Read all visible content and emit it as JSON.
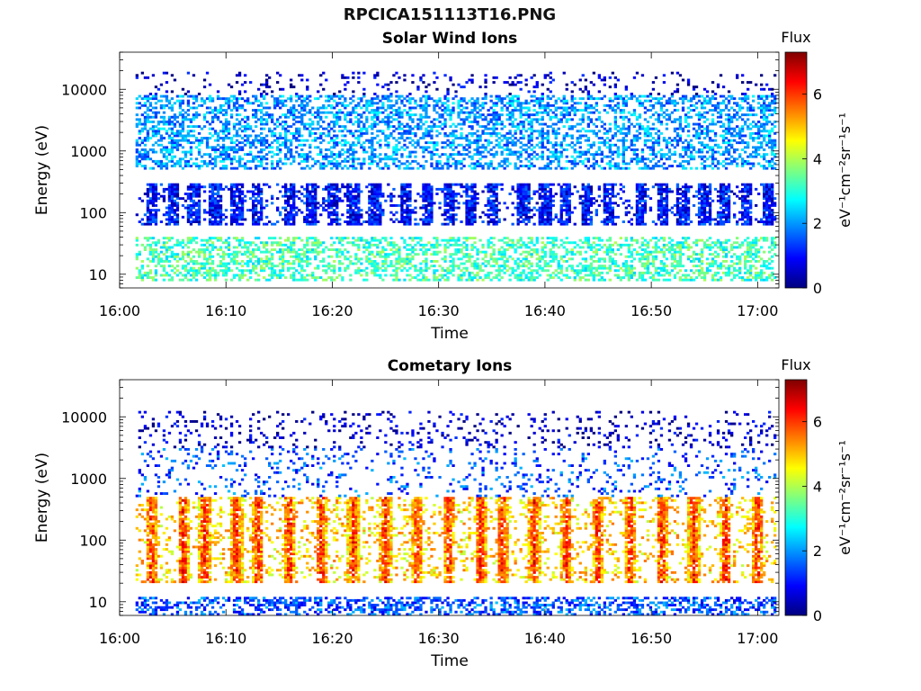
{
  "figure": {
    "title": "RPCICA151113T16.PNG"
  },
  "colormap": {
    "name": "jet",
    "colors": [
      "#00007f",
      "#0000ff",
      "#007fff",
      "#00ffff",
      "#7fff7f",
      "#ffff00",
      "#ff7f00",
      "#ff0000",
      "#7f0000"
    ]
  },
  "chart_data": [
    {
      "type": "heatmap",
      "title": "Solar Wind Ions",
      "xlabel": "Time",
      "ylabel": "Energy (eV)",
      "x_range": [
        "16:00",
        "17:02"
      ],
      "x_ticks": [
        "16:00",
        "16:10",
        "16:20",
        "16:30",
        "16:40",
        "16:50",
        "17:00"
      ],
      "y_scale": "log",
      "y_range": [
        6,
        40000
      ],
      "y_ticks": [
        "10",
        "100",
        "1000",
        "10000"
      ],
      "y_tick_values": [
        10,
        100,
        1000,
        10000
      ],
      "colorbar": {
        "title": "Flux",
        "label": "eV⁻¹cm⁻²sr⁻¹s⁻¹",
        "range": [
          0,
          7.3
        ],
        "ticks": [
          "0",
          "2",
          "4",
          "6"
        ],
        "tick_values": [
          0,
          2,
          4,
          6
        ]
      },
      "data_start": "16:01:30",
      "description_of_bands": [
        {
          "energy_eV": [
            8000,
            20000
          ],
          "flux_approx": 0.5,
          "density": "sparse"
        },
        {
          "energy_eV": [
            500,
            8000
          ],
          "flux_approx": 2.0,
          "density": "scattered"
        },
        {
          "energy_eV": [
            60,
            300
          ],
          "flux_approx": 1.0,
          "density": "periodic bursts"
        },
        {
          "energy_eV": [
            8,
            40
          ],
          "flux_approx": 3.2,
          "density": "scattered"
        }
      ],
      "burst_times": [
        "16:03",
        "16:05",
        "16:07",
        "16:09",
        "16:11",
        "16:13",
        "16:16",
        "16:18",
        "16:20",
        "16:22",
        "16:24",
        "16:27",
        "16:29",
        "16:31",
        "16:33",
        "16:35",
        "16:38",
        "16:40",
        "16:42",
        "16:44",
        "16:46",
        "16:49",
        "16:51",
        "16:53",
        "16:55",
        "16:57",
        "16:59",
        "17:01"
      ]
    },
    {
      "type": "heatmap",
      "title": "Cometary Ions",
      "xlabel": "Time",
      "ylabel": "Energy (eV)",
      "x_range": [
        "16:00",
        "17:02"
      ],
      "x_ticks": [
        "16:00",
        "16:10",
        "16:20",
        "16:30",
        "16:40",
        "16:50",
        "17:00"
      ],
      "y_scale": "log",
      "y_range": [
        6,
        40000
      ],
      "y_ticks": [
        "10",
        "100",
        "1000",
        "10000"
      ],
      "y_tick_values": [
        10,
        100,
        1000,
        10000
      ],
      "colorbar": {
        "title": "Flux",
        "label": "eV⁻¹cm⁻²sr⁻¹s⁻¹",
        "range": [
          0,
          7.3
        ],
        "ticks": [
          "0",
          "2",
          "4",
          "6"
        ],
        "tick_values": [
          0,
          2,
          4,
          6
        ]
      },
      "data_start": "16:01:30",
      "description_of_bands": [
        {
          "energy_eV": [
            3000,
            12000
          ],
          "flux_approx": 0.5,
          "density": "sparse"
        },
        {
          "energy_eV": [
            500,
            3000
          ],
          "flux_approx": 1.5,
          "density": "sparse"
        },
        {
          "energy_eV": [
            20,
            500
          ],
          "flux_approx": 4.8,
          "density": "periodic bursts"
        },
        {
          "energy_eV": [
            6,
            12
          ],
          "flux_approx": 1.5,
          "density": "scattered"
        }
      ],
      "burst_times": [
        "16:03",
        "16:06",
        "16:08",
        "16:11",
        "16:13",
        "16:16",
        "16:19",
        "16:22",
        "16:25",
        "16:28",
        "16:31",
        "16:34",
        "16:36",
        "16:39",
        "16:42",
        "16:45",
        "16:48",
        "16:51",
        "16:54",
        "16:57",
        "17:00"
      ]
    }
  ]
}
